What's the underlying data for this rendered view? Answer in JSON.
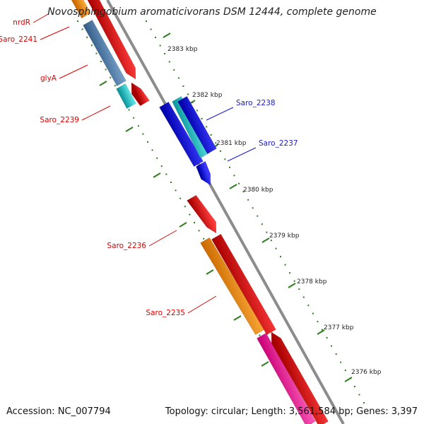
{
  "title": "Novosphingobium aromaticivorans DSM 12444, complete genome",
  "accession_text": "Accession: NC_007794",
  "topology_text": "Topology: circular; Length: 3,561,584 bp; Genes: 3,397",
  "colors": {
    "backbone": "#8c8c8c",
    "tick": "#2e7d1e",
    "label_red": "#dd0000",
    "label_blue": "#1a1ad0"
  },
  "tick_labels": [
    "2383 kbp",
    "2382 kbp",
    "2381 kbp",
    "2380 kbp",
    "2379 kbp",
    "2378 kbp",
    "2377 kbp",
    "2376 kbp"
  ],
  "gene_labels": [
    "nrdR",
    "Saro_2241",
    "glyA",
    "Saro_2239",
    "Saro_2238",
    "Saro_2237",
    "Saro_2236",
    "Saro_2235"
  ]
}
